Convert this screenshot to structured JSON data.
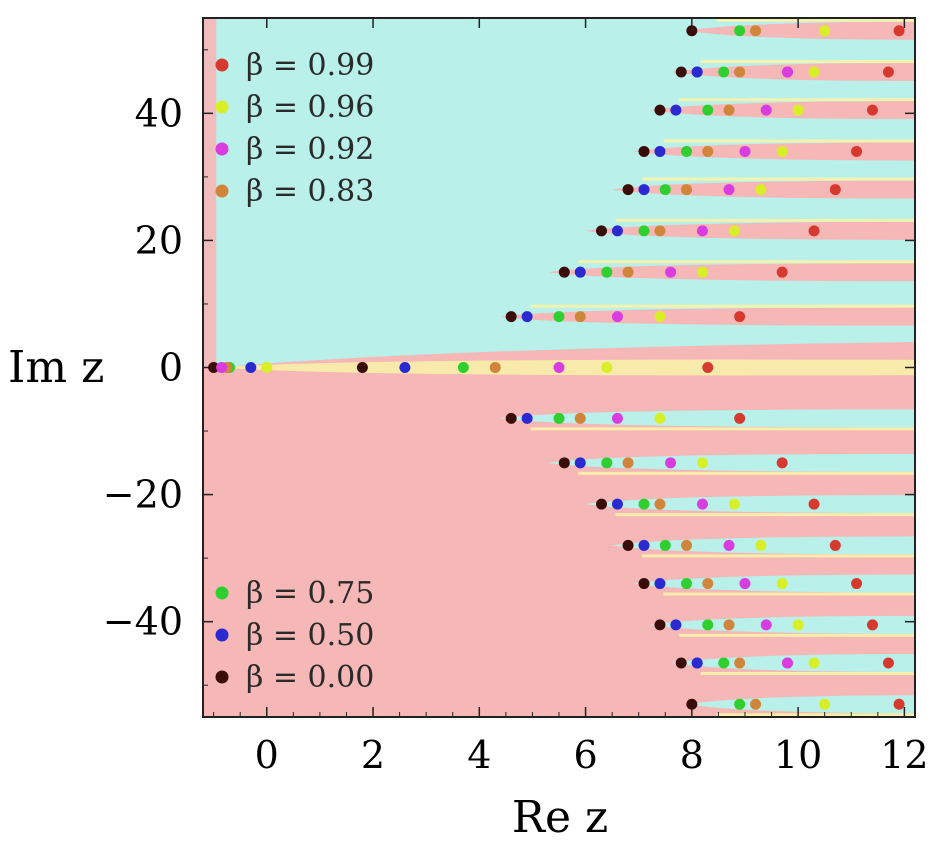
{
  "chart_data": {
    "type": "scatter",
    "title": "",
    "xlabel": "Re z",
    "ylabel": "Im z",
    "xlim": [
      -1.2,
      12.2
    ],
    "ylim": [
      -55,
      55
    ],
    "xticks": [
      0,
      2,
      4,
      6,
      8,
      10,
      12
    ],
    "yticks": [
      -40,
      -20,
      0,
      20,
      40
    ],
    "xtick_labels": [
      "0",
      "2",
      "4",
      "6",
      "8",
      "10",
      "12"
    ],
    "ytick_labels": [
      "−40",
      "−20",
      "0",
      "20",
      "40"
    ],
    "legend_top": [
      {
        "label": "β = 0.99",
        "color": "#d63a2e"
      },
      {
        "label": "β = 0.96",
        "color": "#d8ef28"
      },
      {
        "label": "β = 0.92",
        "color": "#d93de0"
      },
      {
        "label": "β = 0.83",
        "color": "#d0853a"
      }
    ],
    "legend_bottom": [
      {
        "label": "β = 0.75",
        "color": "#2fcf30"
      },
      {
        "label": "β = 0.50",
        "color": "#2a2ad0"
      },
      {
        "label": "β = 0.00",
        "color": "#3a0e08"
      }
    ],
    "background": {
      "upper": "#b9f0ea",
      "lower": "#f6b7b7",
      "band": "#f8f3a8"
    },
    "series": [
      {
        "name": "β = 0.00",
        "color": "#3a0e08",
        "x": [
          -1.0,
          1.8,
          4.6,
          5.6,
          6.3,
          6.8,
          7.1,
          7.4,
          7.8,
          8.0
        ],
        "y": [
          0,
          0,
          8.0,
          15.0,
          21.5,
          28.0,
          34.0,
          40.5,
          46.5,
          53.0
        ]
      },
      {
        "name": "β = 0.50",
        "color": "#2a2ad0",
        "x": [
          -0.3,
          2.6,
          4.9,
          5.9,
          6.6,
          7.1,
          7.4,
          7.7,
          8.1,
          8.1
        ],
        "y": [
          0,
          0,
          8.0,
          15.0,
          21.5,
          28.0,
          34.0,
          40.5,
          46.5,
          46.5
        ]
      },
      {
        "name": "β = 0.75",
        "color": "#2fcf30",
        "x": [
          -0.7,
          3.7,
          5.5,
          6.4,
          7.1,
          7.5,
          7.9,
          8.3,
          8.6,
          8.9
        ],
        "y": [
          0,
          0,
          8.0,
          15.0,
          21.5,
          28.0,
          34.0,
          40.5,
          46.5,
          53.0
        ]
      },
      {
        "name": "β = 0.83",
        "color": "#d0853a",
        "x": [
          -0.75,
          4.3,
          5.9,
          6.8,
          7.4,
          7.9,
          8.3,
          8.7,
          8.9,
          9.2
        ],
        "y": [
          0,
          0,
          8.0,
          15.0,
          21.5,
          28.0,
          34.0,
          40.5,
          46.5,
          53.0
        ]
      },
      {
        "name": "β = 0.92",
        "color": "#d93de0",
        "x": [
          -0.85,
          5.5,
          6.6,
          7.6,
          8.2,
          8.7,
          9.0,
          9.4,
          9.8,
          9.8
        ],
        "y": [
          0,
          0,
          8.0,
          15.0,
          21.5,
          28.0,
          34.0,
          40.5,
          46.5,
          46.5
        ]
      },
      {
        "name": "β = 0.96",
        "color": "#d8ef28",
        "x": [
          0.0,
          6.4,
          7.4,
          8.2,
          8.8,
          9.3,
          9.7,
          10.0,
          10.3,
          10.5
        ],
        "y": [
          0,
          0,
          8.0,
          15.0,
          21.5,
          28.0,
          34.0,
          40.5,
          46.5,
          53.0
        ]
      },
      {
        "name": "β = 0.99",
        "color": "#d63a2e",
        "x": [
          8.3,
          8.9,
          9.7,
          10.3,
          10.7,
          11.1,
          11.4,
          11.7,
          11.9
        ],
        "y": [
          0,
          8.0,
          15.0,
          21.5,
          28.0,
          34.0,
          40.5,
          46.5,
          53.0
        ]
      }
    ]
  }
}
